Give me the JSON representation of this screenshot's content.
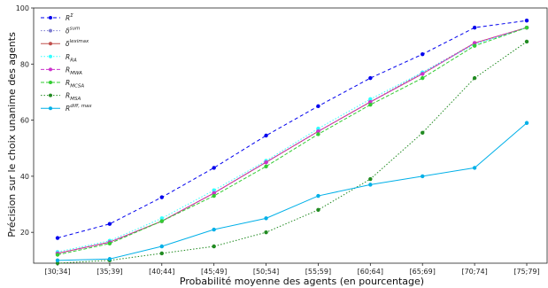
{
  "chart_data": {
    "type": "line",
    "xlabel": "Probabilité moyenne des agents (en pourcentage)",
    "ylabel": "Précision sur le choix unanime des agents",
    "categories": [
      "[30;34]",
      "[35;39]",
      "[40;44]",
      "[45;49]",
      "[50;54]",
      "[55;59]",
      "[60;64]",
      "[65;69]",
      "[70;74]",
      "[75;79]"
    ],
    "ylim": [
      9,
      100
    ],
    "yticks": [
      20,
      40,
      60,
      80,
      100
    ],
    "grid": false,
    "legend_position": "top-left",
    "series": [
      {
        "name": "R",
        "sup": "Σ",
        "sub": "",
        "color": "#0000ee",
        "dash": "4,3",
        "values": [
          18,
          23,
          32.5,
          43,
          54.5,
          65,
          75,
          83.5,
          93,
          95.5
        ]
      },
      {
        "name": "δ",
        "sup": "sum",
        "sub": "",
        "color": "#7b7bd0",
        "dash": "1.5,2",
        "values": [
          12.5,
          16.5,
          24,
          34,
          45,
          56,
          66.5,
          77,
          87.5,
          93
        ]
      },
      {
        "name": "δ",
        "sup": "leximax",
        "sub": "",
        "color": "#c0504d",
        "dash": "",
        "values": [
          12.5,
          16.5,
          24,
          34,
          45,
          56,
          66.5,
          76.5,
          87.5,
          93
        ]
      },
      {
        "name": "R",
        "sup": "",
        "sub": "RA",
        "color": "#33ffff",
        "dash": "1.5,2",
        "values": [
          13,
          17,
          25,
          35,
          45.5,
          57,
          67.5,
          77,
          87,
          93
        ]
      },
      {
        "name": "R",
        "sup": "",
        "sub": "MWA",
        "color": "#cc33cc",
        "dash": "4,2",
        "values": [
          12.5,
          16.5,
          24,
          34,
          45,
          56,
          66.5,
          76.5,
          87.5,
          93
        ]
      },
      {
        "name": "R",
        "sup": "",
        "sub": "MCSA",
        "color": "#33cc33",
        "dash": "4,2",
        "values": [
          12,
          16,
          24,
          33,
          43.5,
          55,
          65.5,
          75,
          86.5,
          93
        ]
      },
      {
        "name": "R",
        "sup": "",
        "sub": "MSA",
        "color": "#228b22",
        "dash": "1.5,2",
        "values": [
          9,
          10,
          12.5,
          15,
          20,
          28,
          39,
          55.5,
          75,
          88
        ]
      },
      {
        "name": "R",
        "sup": "diff, max",
        "sub": "",
        "color": "#00b0e8",
        "dash": "",
        "values": [
          10,
          10.5,
          15,
          21,
          25,
          33,
          37,
          40,
          43,
          59
        ]
      }
    ]
  }
}
